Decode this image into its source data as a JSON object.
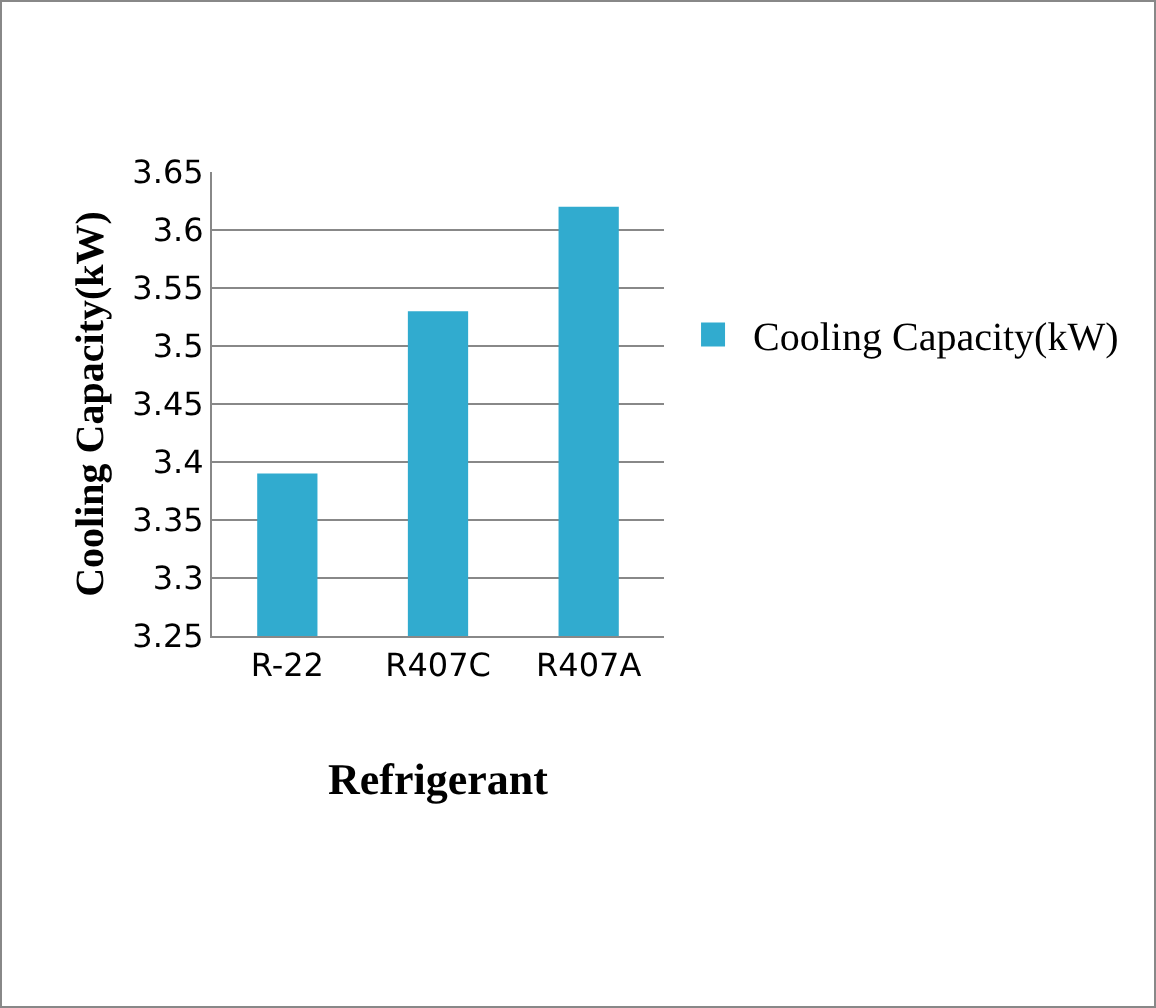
{
  "chart_data": {
    "type": "bar",
    "xlabel": "Refrigerant",
    "ylabel": "Cooling Capacity(kW)",
    "categories": [
      "R-22",
      "R407C",
      "R407A"
    ],
    "series": [
      {
        "name": "Cooling Capacity(kW)",
        "color": "#31abcf",
        "values": [
          3.39,
          3.53,
          3.62
        ]
      }
    ],
    "ylim": [
      3.25,
      3.65
    ],
    "yticks": [
      3.25,
      3.3,
      3.35,
      3.4,
      3.45,
      3.5,
      3.55,
      3.6,
      3.65
    ],
    "grid": "y",
    "legend": "right"
  }
}
